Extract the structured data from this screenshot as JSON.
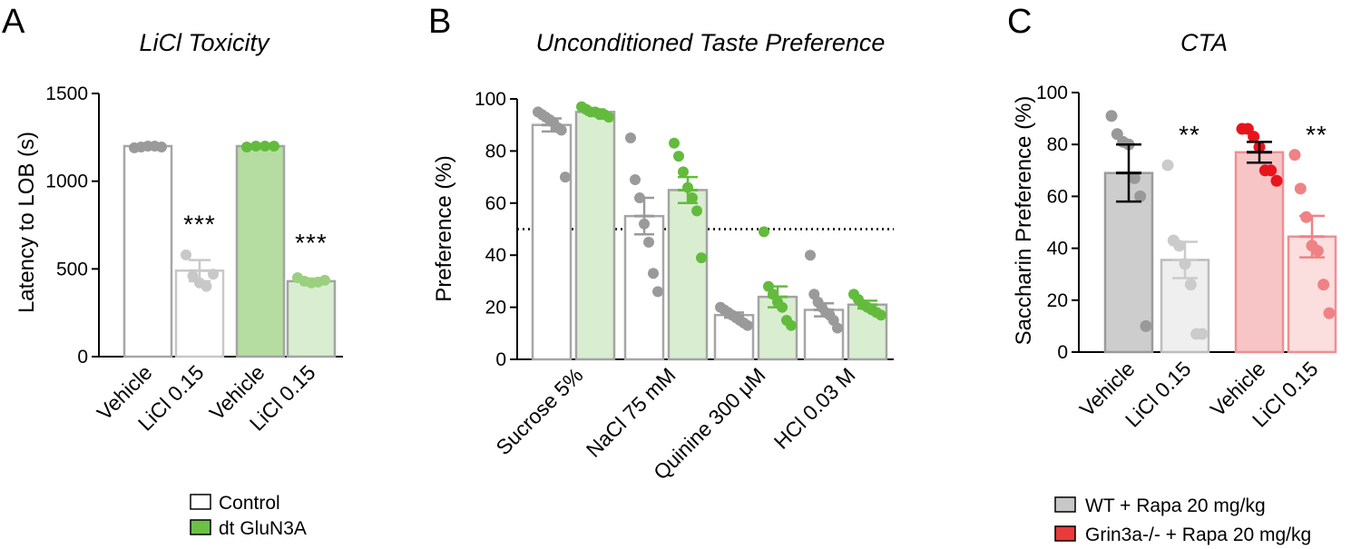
{
  "colors": {
    "control_edge": "#a6a6a6",
    "control_fill": "#ffffff",
    "control_light_edge": "#c8c8c8",
    "control_point": "#9a9a9a",
    "control_light_point": "#c8c8c8",
    "dtglun3a_edge": "#a3a3a3",
    "dtglun3a_fill": "#b5dda1",
    "dtglun3a_light_fill": "#d9eed0",
    "dtglun3a_point": "#63bb3d",
    "dtglun3a_light_point": "#9ad07f",
    "wt_fill": "#cdcdcd",
    "wt_edge": "#9a9a9a",
    "wt_light_fill": "#efefef",
    "wt_light_edge": "#bcbcbc",
    "wt_point": "#999999",
    "wt_light_point": "#cbcbcb",
    "ko_fill": "#f7c5c6",
    "ko_edge": "#ef8f92",
    "ko_point": "#e8141d",
    "ko_light_point": "#ef8285",
    "ko_light_fill": "#fbdede",
    "legend_control": "#ffffff",
    "legend_dtglun3a": "#6cc046",
    "legend_wt": "#c7c7c7",
    "legend_ko": "#ea3a3a"
  },
  "chart_data": [
    {
      "panel": "A",
      "type": "bar",
      "title": "LiCl Toxicity",
      "ylabel": "Latency to LOB (s)",
      "xlabel": "",
      "ylim": [
        0,
        1500
      ],
      "yticks": [
        0,
        500,
        1000,
        1500
      ],
      "categories": [
        "Vehicle",
        "LiCl 0.15",
        "Vehicle",
        "LiCl 0.15"
      ],
      "groups": [
        "Control",
        "Control",
        "dt GluN3A",
        "dt GluN3A"
      ],
      "values": [
        1200,
        490,
        1200,
        430
      ],
      "sem": [
        0,
        60,
        0,
        15
      ],
      "significance": [
        "",
        "***",
        "",
        "***"
      ],
      "points": [
        [
          1190,
          1195,
          1200,
          1200,
          1195
        ],
        [
          580,
          460,
          420,
          400,
          470
        ],
        [
          1195,
          1200,
          1200,
          1200
        ],
        [
          450,
          430,
          420,
          425,
          435
        ]
      ],
      "legend": [
        "Control",
        "dt GluN3A"
      ],
      "grid": false
    },
    {
      "panel": "B",
      "type": "bar",
      "title": "Unconditioned Taste Preference",
      "ylabel": "Preference (%)",
      "xlabel": "",
      "ylim": [
        0,
        100
      ],
      "yticks": [
        0,
        20,
        40,
        60,
        80,
        100
      ],
      "reference_line": 50,
      "categories": [
        "Sucrose 5%",
        "NaCl 75 mM",
        "Quinine 300 μM",
        "HCl 0.03 M"
      ],
      "series": [
        {
          "name": "Control",
          "values": [
            90,
            55,
            17,
            19
          ],
          "sem": [
            2.5,
            7,
            1,
            2.5
          ],
          "points": [
            [
              95,
              94,
              93,
              92,
              91,
              89,
              88,
              70
            ],
            [
              85,
              69,
              62,
              52,
              45,
              33,
              26
            ],
            [
              20,
              19,
              18,
              17,
              16,
              15,
              14,
              13
            ],
            [
              40,
              25,
              22,
              20,
              18,
              17,
              15,
              12
            ]
          ]
        },
        {
          "name": "dt GluN3A",
          "values": [
            95,
            65,
            24,
            21
          ],
          "sem": [
            1,
            5,
            4,
            1.5
          ],
          "points": [
            [
              97,
              96,
              95,
              95,
              94,
              94,
              93
            ],
            [
              83,
              78,
              72,
              66,
              62,
              57,
              39
            ],
            [
              49,
              28,
              25,
              22,
              20,
              15,
              13
            ],
            [
              25,
              23,
              21,
              20,
              19,
              18,
              17
            ]
          ]
        }
      ],
      "legend": [
        "Control",
        "dt GluN3A"
      ],
      "grid": false
    },
    {
      "panel": "C",
      "type": "bar",
      "title": "CTA",
      "ylabel": "Saccharin Preference (%)",
      "xlabel": "",
      "ylim": [
        0,
        100
      ],
      "yticks": [
        0,
        20,
        40,
        60,
        80,
        100
      ],
      "categories": [
        "Vehicle",
        "LiCl 0.15",
        "Vehicle",
        "LiCl 0.15"
      ],
      "groups": [
        "WT + Rapa 20 mg/kg",
        "WT + Rapa 20 mg/kg",
        "Grin3a-/- + Rapa 20 mg/kg",
        "Grin3a-/- + Rapa 20 mg/kg"
      ],
      "values": [
        69,
        35.5,
        77,
        44.5
      ],
      "sem": [
        11,
        7,
        4,
        8
      ],
      "significance": [
        "",
        "**",
        "",
        "**"
      ],
      "points": [
        [
          91,
          84,
          81,
          80,
          67,
          60,
          10
        ],
        [
          72,
          43,
          41,
          34,
          26,
          7,
          7
        ],
        [
          86,
          86,
          83,
          79,
          70,
          70,
          66
        ],
        [
          76,
          63,
          52,
          41,
          39,
          26,
          15
        ]
      ],
      "legend": [
        "WT + Rapa 20 mg/kg",
        "Grin3a-/- + Rapa 20 mg/kg"
      ],
      "grid": false
    }
  ]
}
